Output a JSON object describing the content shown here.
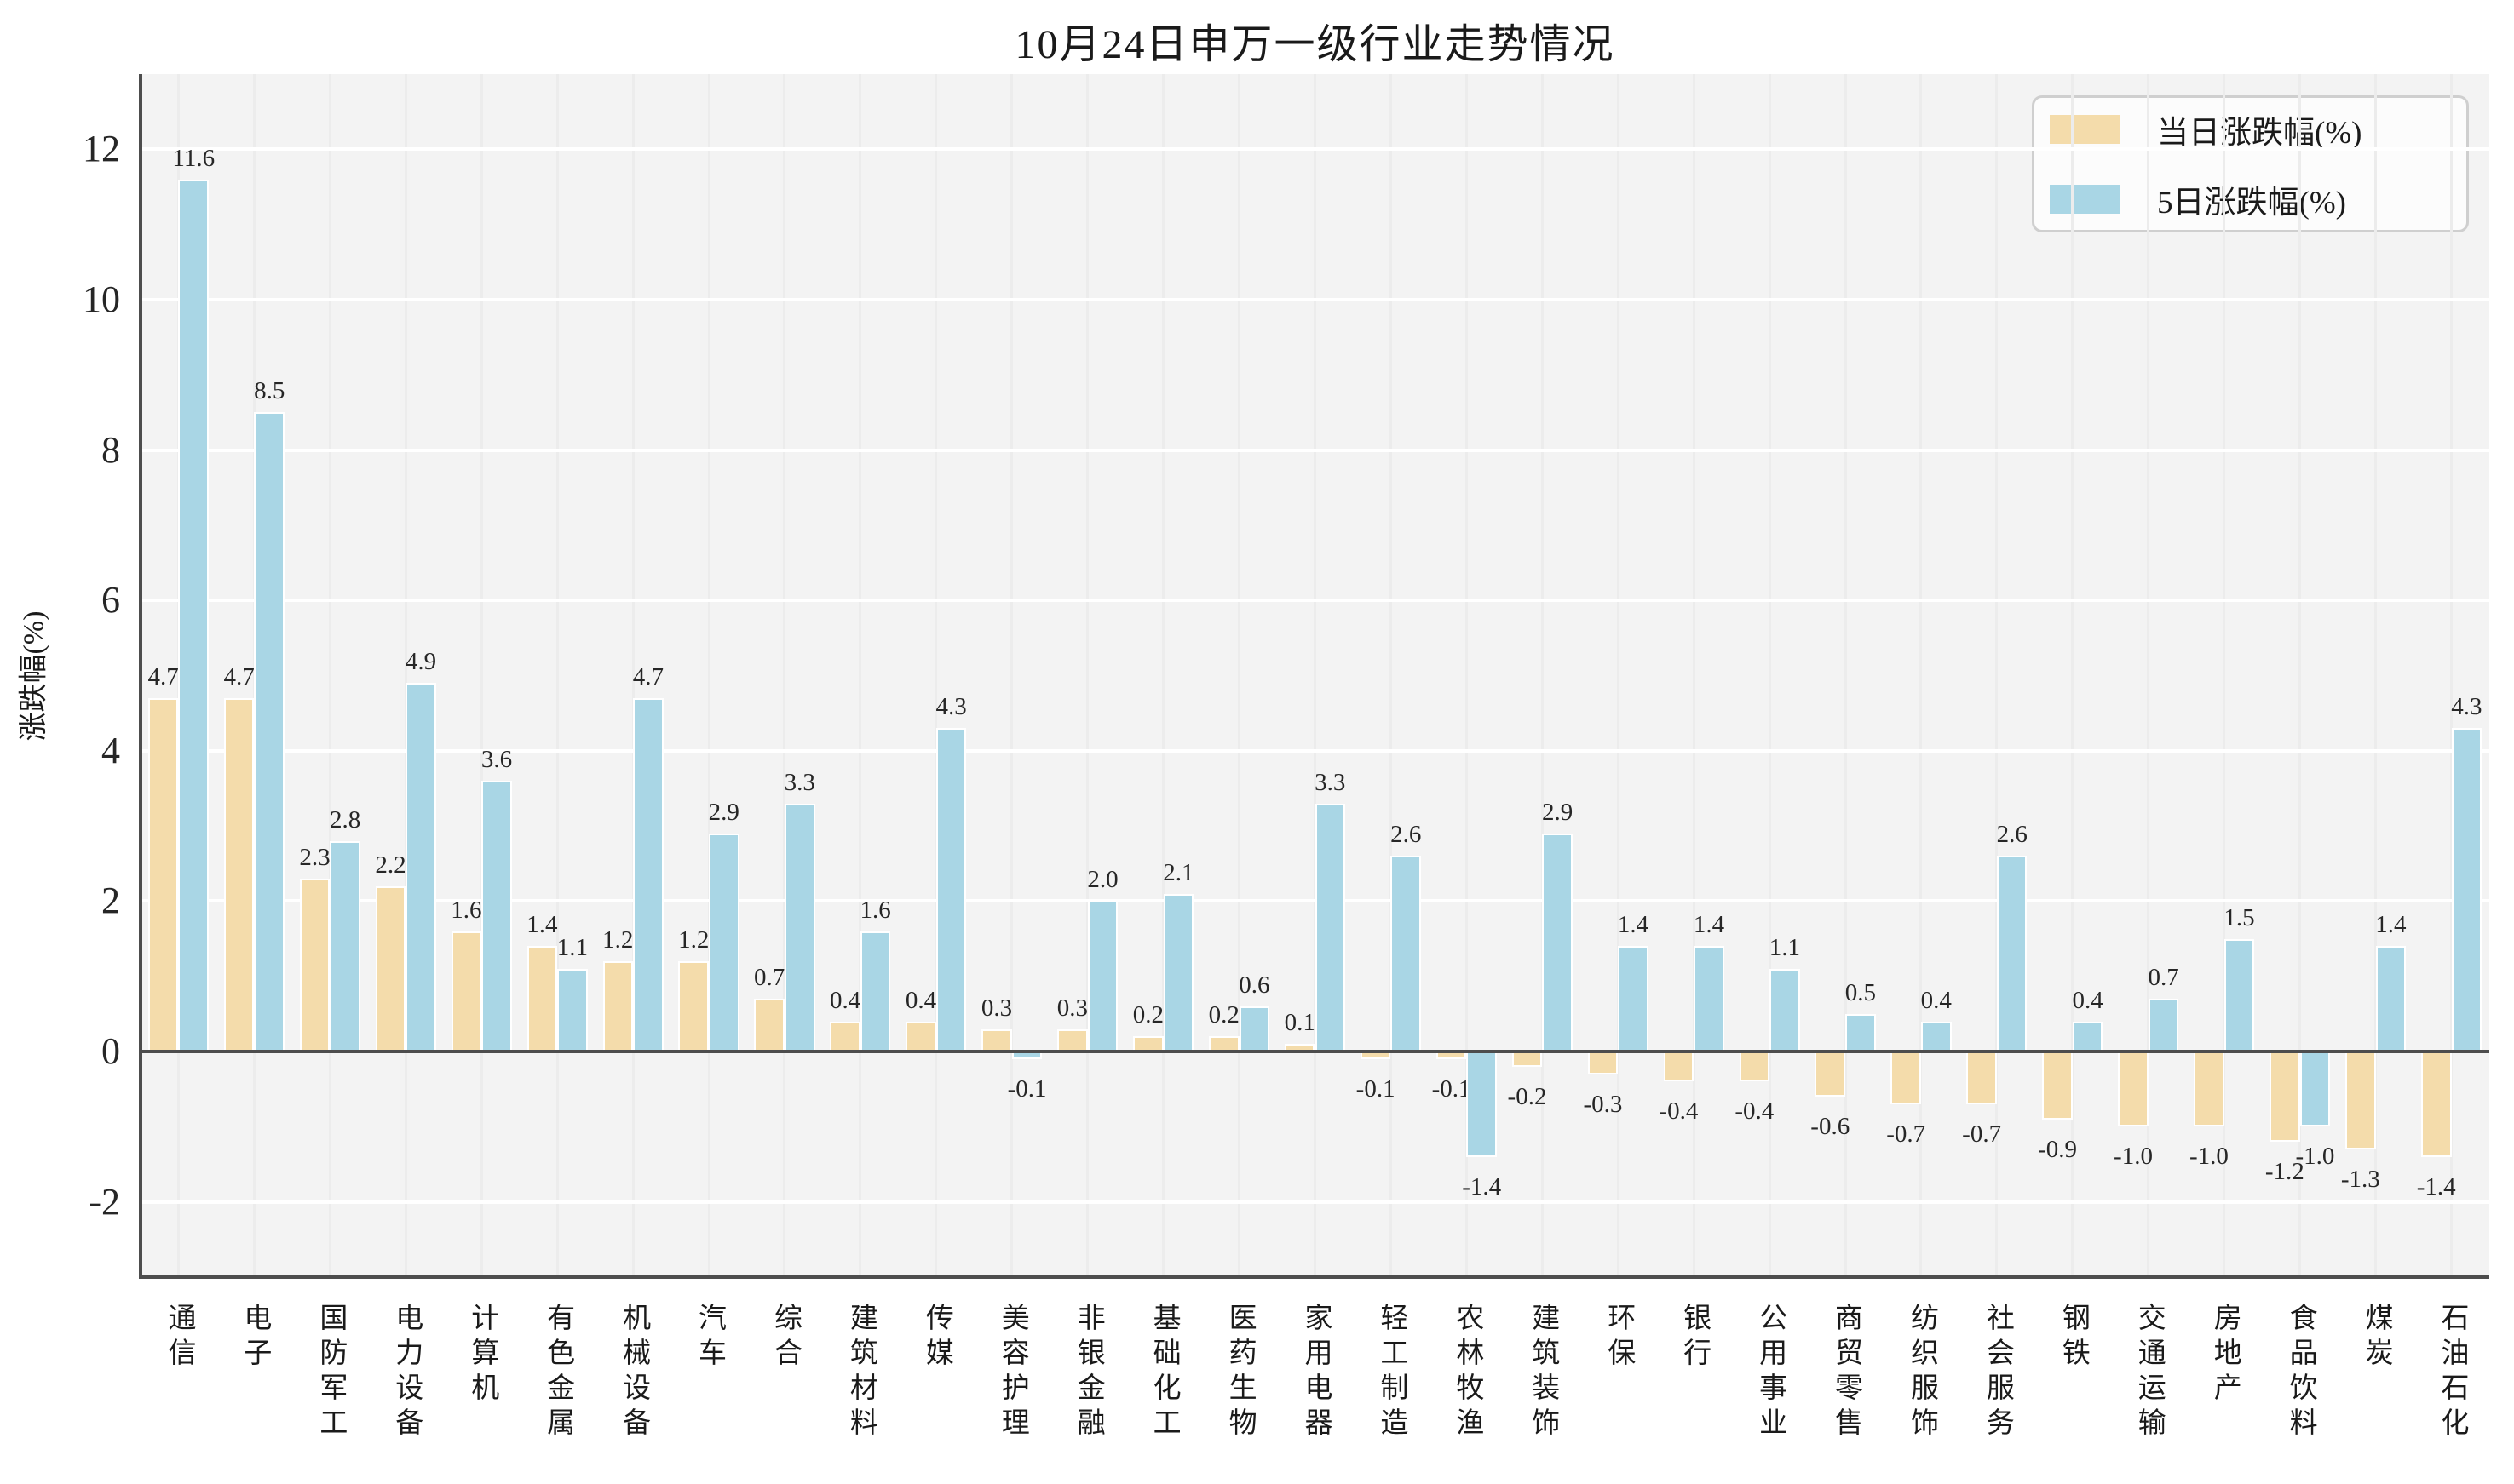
{
  "chart_data": {
    "type": "bar",
    "title": "10月24日申万一级行业走势情况",
    "xlabel": "",
    "ylabel": "涨跌幅(%)",
    "categories": [
      "通信",
      "电子",
      "国防军工",
      "电力设备",
      "计算机",
      "有色金属",
      "机械设备",
      "汽车",
      "综合",
      "建筑材料",
      "传媒",
      "美容护理",
      "非银金融",
      "基础化工",
      "医药生物",
      "家用电器",
      "轻工制造",
      "农林牧渔",
      "建筑装饰",
      "环保",
      "银行",
      "公用事业",
      "商贸零售",
      "纺织服饰",
      "社会服务",
      "钢铁",
      "交通运输",
      "房地产",
      "食品饮料",
      "煤炭",
      "石油石化"
    ],
    "series": [
      {
        "name": "当日涨跌幅(%)",
        "color": "#f4dcab",
        "values": [
          4.7,
          4.7,
          2.3,
          2.2,
          1.6,
          1.4,
          1.2,
          1.2,
          0.7,
          0.4,
          0.4,
          0.3,
          0.3,
          0.2,
          0.2,
          0.1,
          -0.1,
          -0.1,
          -0.2,
          -0.3,
          -0.4,
          -0.4,
          -0.6,
          -0.7,
          -0.7,
          -0.9,
          -1.0,
          -1.0,
          -1.2,
          -1.3,
          -1.4
        ]
      },
      {
        "name": "5日涨跌幅(%)",
        "color": "#a9d6e5",
        "values": [
          11.6,
          8.5,
          2.8,
          4.9,
          3.6,
          1.1,
          4.7,
          2.9,
          3.3,
          1.6,
          4.3,
          -0.1,
          2.0,
          2.1,
          0.6,
          3.3,
          2.6,
          -1.4,
          2.9,
          1.4,
          1.4,
          1.1,
          0.5,
          0.4,
          2.6,
          0.4,
          0.7,
          1.5,
          -1.0,
          1.4,
          4.3
        ]
      }
    ],
    "yticks": [
      12,
      10,
      8,
      6,
      4,
      2,
      0,
      -2
    ],
    "ylim": [
      -3,
      13
    ],
    "grid": true,
    "legend_position": "upper right",
    "value_labels": true
  },
  "colors": {
    "figure_bg": "#ffffff",
    "plot_bg": "#f3f3f3",
    "h_grid": "#ffffff",
    "v_grid": "#ececec",
    "axis": "#4d4d4d",
    "text": "#1a1a1a",
    "bar_edge": "#ffffff",
    "legend_bg": "#fcfcfc",
    "legend_border": "#cfcfcf"
  }
}
